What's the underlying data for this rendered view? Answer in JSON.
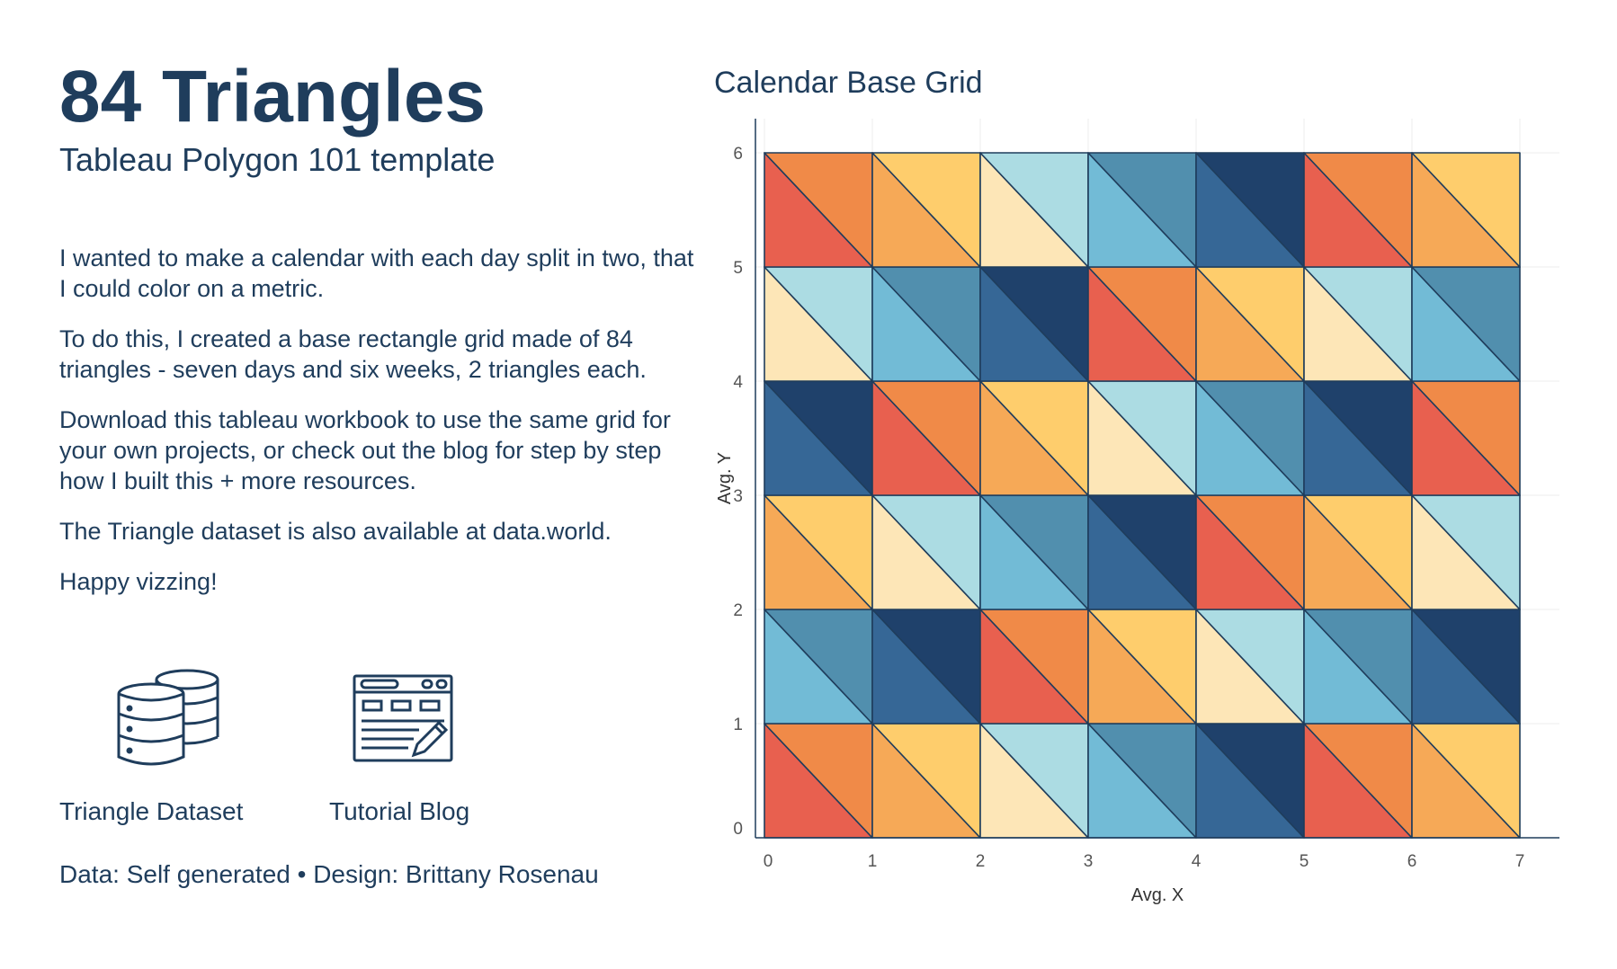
{
  "header": {
    "title": "84 Triangles",
    "subtitle": "Tableau Polygon 101 template"
  },
  "paragraphs": [
    "I wanted to make a calendar with each day split in two, that I could color on a metric.",
    "To do this, I created a base rectangle grid made of 84 triangles - seven days and six weeks, 2 triangles each.",
    "Download this tableau workbook to use the same grid for your own projects, or check out the blog for step by step how I built this + more resources.",
    "The Triangle dataset is also available at data.world.",
    "Happy vizzing!"
  ],
  "resources": [
    {
      "label": "Triangle Dataset",
      "icon": "database-icon"
    },
    {
      "label": "Tutorial Blog",
      "icon": "blog-tutorial-icon"
    }
  ],
  "credit": "Data: Self generated • Design: Brittany Rosenau",
  "palette": {
    "red": "#e8604f",
    "orange": "#f08a48",
    "amber": "#f6a957",
    "yellow": "#fecd6c",
    "cream": "#fde6b7",
    "light_teal": "#acdce3",
    "sky": "#72bbd6",
    "steel": "#518fae",
    "blue": "#366796",
    "navy": "#1f416b",
    "outline": "#1f3d5c"
  },
  "chart_data": {
    "type": "polygon",
    "title": "Calendar Base Grid",
    "xlabel": "Avg. X",
    "ylabel": "Avg. Y",
    "xlim": [
      0,
      7
    ],
    "ylim": [
      0,
      6
    ],
    "xticks": [
      0,
      1,
      2,
      3,
      4,
      5,
      6,
      7
    ],
    "yticks": [
      0,
      1,
      2,
      3,
      4,
      5,
      6
    ],
    "grid": true,
    "triangle_count": 84,
    "split": "diagonal top-left to bottom-right",
    "cells": [
      {
        "row": 0,
        "lower": [
          "red",
          "amber",
          "cream",
          "sky",
          "blue",
          "red",
          "amber"
        ],
        "upper": [
          "orange",
          "yellow",
          "light_teal",
          "steel",
          "navy",
          "orange",
          "yellow"
        ]
      },
      {
        "row": 1,
        "lower": [
          "sky",
          "blue",
          "red",
          "amber",
          "cream",
          "sky",
          "blue"
        ],
        "upper": [
          "steel",
          "navy",
          "orange",
          "yellow",
          "light_teal",
          "steel",
          "navy"
        ]
      },
      {
        "row": 2,
        "lower": [
          "amber",
          "cream",
          "sky",
          "blue",
          "red",
          "amber",
          "cream"
        ],
        "upper": [
          "yellow",
          "light_teal",
          "steel",
          "navy",
          "orange",
          "yellow",
          "light_teal"
        ]
      },
      {
        "row": 3,
        "lower": [
          "blue",
          "red",
          "amber",
          "cream",
          "sky",
          "blue",
          "red"
        ],
        "upper": [
          "navy",
          "orange",
          "yellow",
          "light_teal",
          "steel",
          "navy",
          "orange"
        ]
      },
      {
        "row": 4,
        "lower": [
          "cream",
          "sky",
          "blue",
          "red",
          "amber",
          "cream",
          "sky"
        ],
        "upper": [
          "light_teal",
          "steel",
          "navy",
          "orange",
          "yellow",
          "light_teal",
          "steel"
        ]
      },
      {
        "row": 5,
        "lower": [
          "red",
          "amber",
          "cream",
          "sky",
          "blue",
          "red",
          "amber"
        ],
        "upper": [
          "orange",
          "yellow",
          "light_teal",
          "steel",
          "navy",
          "orange",
          "yellow"
        ]
      }
    ]
  }
}
